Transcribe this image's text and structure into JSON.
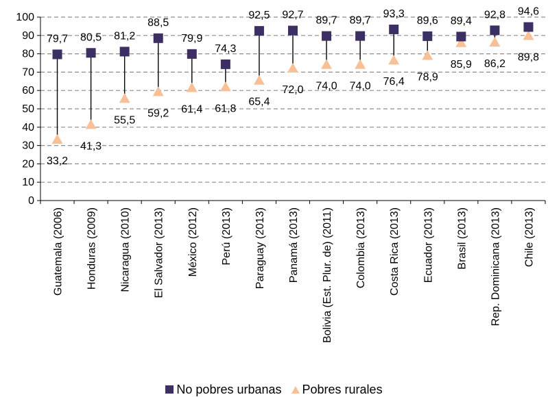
{
  "chart_data": {
    "type": "scatter",
    "categories": [
      "Guatemala (2006)",
      "Honduras (2009)",
      "Nicaragua (2010)",
      "El Salvador (2013)",
      "México (2012)",
      "Perú (2013)",
      "Paraguay (2013)",
      "Panamá (2013)",
      "Bolivia (Est. Plur. de)  (2011)",
      "Colombia (2013)",
      "Costa Rica (2013)",
      "Ecuador (2013)",
      "Brasil (2013)",
      "Rep. Dominicana (2013)",
      "Chile (2013)"
    ],
    "series": [
      {
        "name": "No pobres urbanas",
        "color": "#3b2f63",
        "marker": "square",
        "values": [
          79.7,
          80.5,
          81.2,
          88.5,
          79.9,
          74.3,
          92.5,
          92.7,
          89.7,
          89.7,
          93.3,
          89.6,
          89.4,
          92.8,
          94.6
        ],
        "labels": [
          "79,7",
          "80,5",
          "81,2",
          "88,5",
          "79,9",
          "74,3",
          "92,5",
          "92,7",
          "89,7",
          "89,7",
          "93,3",
          "89,6",
          "89,4",
          "92,8",
          "94,6"
        ]
      },
      {
        "name": "Pobres rurales",
        "color": "#f7c097",
        "marker": "triangle",
        "values": [
          33.2,
          41.3,
          55.5,
          59.2,
          61.4,
          61.8,
          65.4,
          72.0,
          74.0,
          74.0,
          76.4,
          78.9,
          85.9,
          86.2,
          89.8
        ],
        "labels": [
          "33,2",
          "41,3",
          "55,5",
          "59,2",
          "61,4",
          "61,8",
          "65,4",
          "72,0",
          "74,0",
          "74,0",
          "76,4",
          "78,9",
          "85,9",
          "86,2",
          "89,8"
        ]
      }
    ],
    "yticks": [
      "0",
      "10",
      "20",
      "30",
      "40",
      "50",
      "60",
      "70",
      "80",
      "90",
      "100"
    ],
    "ylim": [
      0,
      100
    ],
    "grid": "horizontal dashed",
    "legend_position": "bottom",
    "title": "",
    "xlabel": "",
    "ylabel": ""
  },
  "legend": {
    "urban_label": "No pobres urbanas",
    "rural_label": "Pobres rurales"
  }
}
